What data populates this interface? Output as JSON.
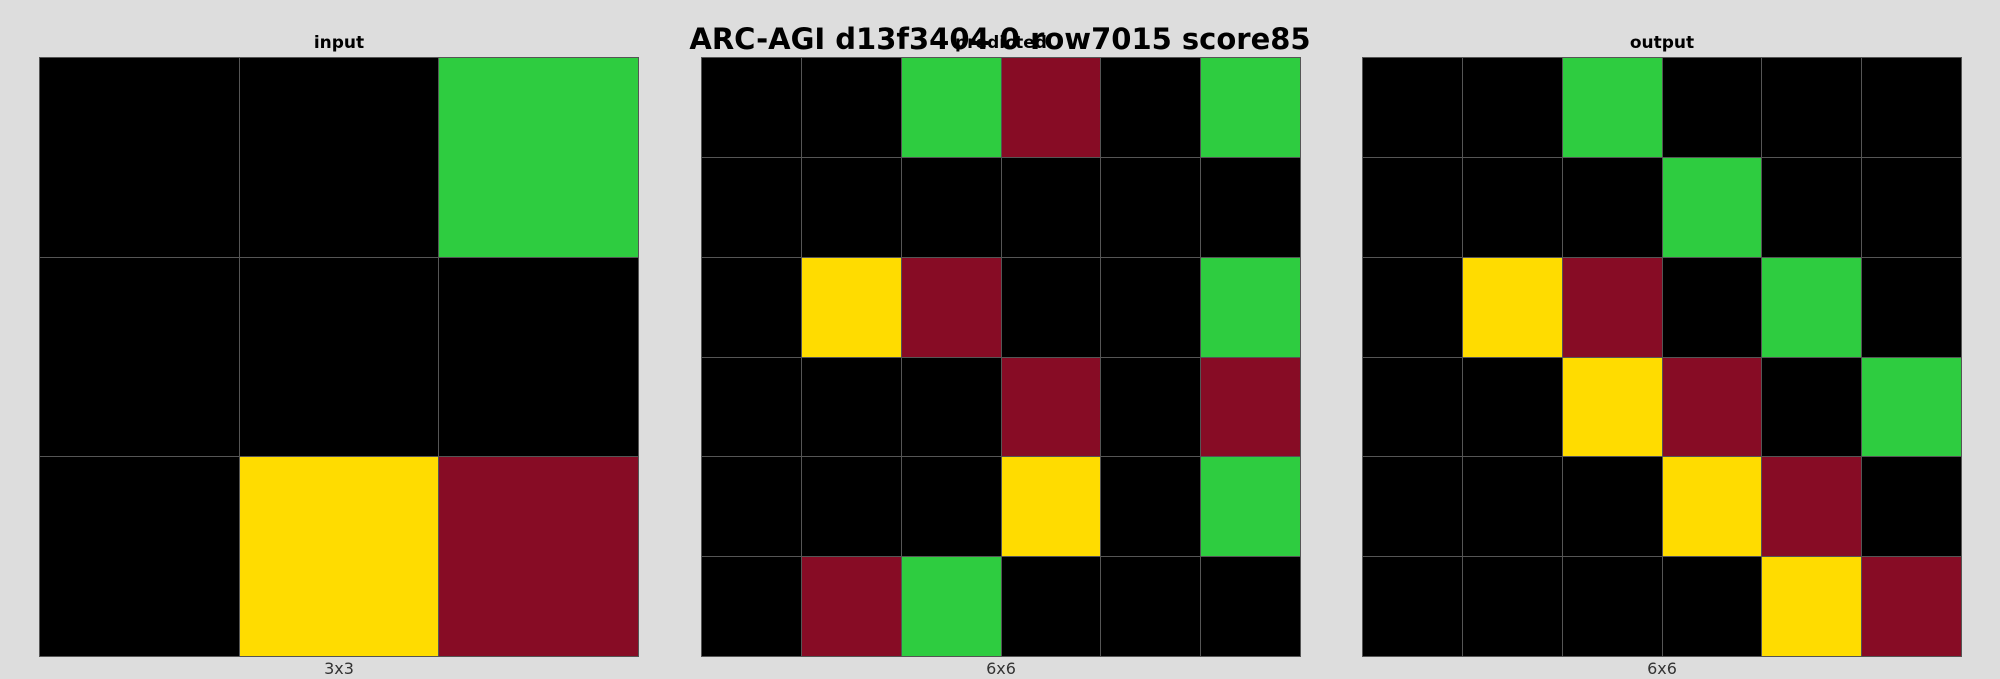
{
  "title": "ARC-AGI d13f3404 0 row7015 score85",
  "palette": {
    "0": "#000000",
    "3": "#2ECC40",
    "4": "#FFDC00",
    "9": "#870C25"
  },
  "panels": [
    {
      "title": "input",
      "size_label": "3x3",
      "grid": [
        [
          0,
          0,
          3
        ],
        [
          0,
          0,
          0
        ],
        [
          0,
          4,
          9
        ]
      ]
    },
    {
      "title": "predicted",
      "size_label": "6x6",
      "grid": [
        [
          0,
          0,
          3,
          9,
          0,
          3
        ],
        [
          0,
          0,
          0,
          0,
          0,
          0
        ],
        [
          0,
          4,
          9,
          0,
          0,
          3
        ],
        [
          0,
          0,
          0,
          9,
          0,
          9
        ],
        [
          0,
          0,
          0,
          4,
          0,
          3
        ],
        [
          0,
          9,
          3,
          0,
          0,
          0
        ]
      ]
    },
    {
      "title": "output",
      "size_label": "6x6",
      "grid": [
        [
          0,
          0,
          3,
          0,
          0,
          0
        ],
        [
          0,
          0,
          0,
          3,
          0,
          0
        ],
        [
          0,
          4,
          9,
          0,
          3,
          0
        ],
        [
          0,
          0,
          4,
          9,
          0,
          3
        ],
        [
          0,
          0,
          0,
          4,
          9,
          0
        ],
        [
          0,
          0,
          0,
          0,
          4,
          9
        ]
      ]
    }
  ]
}
